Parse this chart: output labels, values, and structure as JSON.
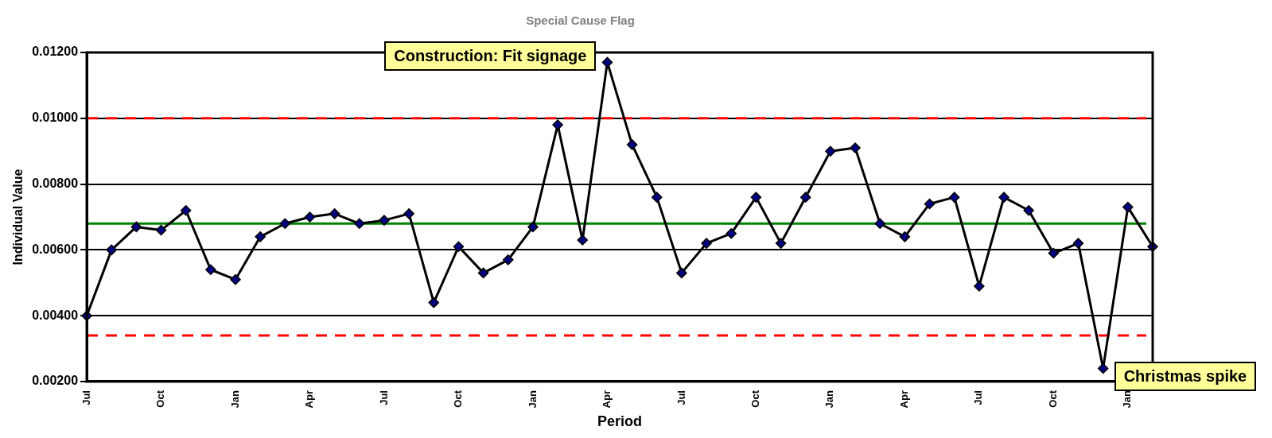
{
  "chart_data": {
    "type": "line",
    "title": "Special Cause Flag",
    "xlabel": "Period",
    "ylabel": "Individual Value",
    "categories": [
      "Jul",
      null,
      null,
      "Oct",
      null,
      null,
      "Jan",
      null,
      null,
      "Apr",
      null,
      null,
      "Jul",
      null,
      null,
      "Oct",
      null,
      null,
      "Jan",
      null,
      null,
      "Apr",
      null,
      null,
      "Jul",
      null,
      null,
      "Oct",
      null,
      null,
      "Jan",
      null,
      null,
      "Apr",
      null,
      null,
      "Jul",
      null,
      null,
      "Oct",
      null,
      null,
      "Jan",
      null
    ],
    "series": [
      {
        "color": "#000080",
        "values": [
          0.004,
          0.006,
          0.0067,
          0.0066,
          0.0072,
          0.0054,
          0.0051,
          0.0064,
          0.0068,
          0.007,
          0.0071,
          0.0068,
          0.0069,
          0.0071,
          0.0044,
          0.0061,
          0.0053,
          0.0057,
          0.0067,
          0.0098,
          0.0063,
          0.0117,
          0.0092,
          0.0076,
          0.0053,
          0.0062,
          0.0065,
          0.0076,
          0.0062,
          0.0076,
          0.009,
          0.0091,
          0.0068,
          0.0064,
          0.0074,
          0.0076,
          0.0049,
          0.0076,
          0.0072,
          0.0059,
          0.0062,
          0.0024,
          0.0073,
          0.0061
        ]
      }
    ],
    "ylim": [
      0.002,
      0.012
    ],
    "yticks": [
      {
        "value": 0.002,
        "label": "0.00200"
      },
      {
        "value": 0.004,
        "label": "0.00400"
      },
      {
        "value": 0.006,
        "label": "0.00600"
      },
      {
        "value": 0.008,
        "label": "0.00800"
      },
      {
        "value": 0.01,
        "label": "0.01000"
      },
      {
        "value": 0.012,
        "label": "0.01200"
      }
    ],
    "ref_lines": [
      {
        "axis": "y",
        "value": 0.01,
        "color": "#ff0000",
        "line_style": "dashed"
      },
      {
        "axis": "y",
        "value": 0.0068,
        "color": "#008000",
        "line_style": "solid"
      },
      {
        "axis": "y",
        "value": 0.0034,
        "color": "#ff0000",
        "line_style": "dashed"
      }
    ],
    "annotations": [
      "Construction: Fit signage",
      "Christmas spike"
    ],
    "grid": "y",
    "legend": false,
    "marker": "diamond",
    "line_style": "solid"
  }
}
